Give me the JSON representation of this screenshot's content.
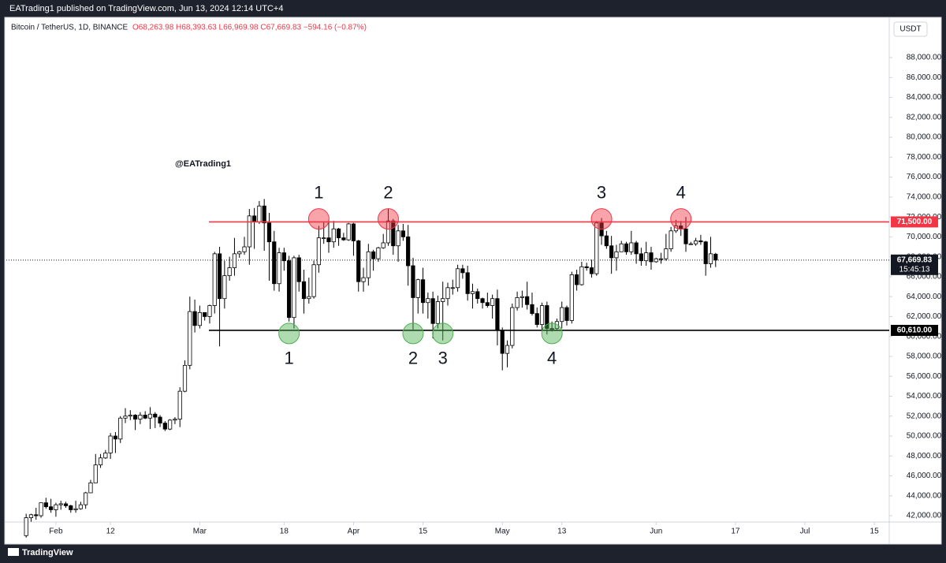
{
  "header": {
    "published": "EATrading1 published on TradingView.com, Jun 13, 2024 12:14 UTC+4",
    "symbol": "Bitcoin / TetherUS, 1D, BINANCE",
    "ohlc": "O68,263.98 H68,393.63 L66,969.98 C67,669.83 −594.16 (−0.87%)",
    "currency": "USDT"
  },
  "footer": {
    "brand": "TradingView"
  },
  "chart_data": {
    "type": "candlestick",
    "watermark": "@EATrading1",
    "x": [
      "2024-01-26",
      "2024-01-27",
      "2024-01-28",
      "2024-01-29",
      "2024-01-30",
      "2024-01-31",
      "2024-02-01",
      "2024-02-02",
      "2024-02-03",
      "2024-02-04",
      "2024-02-05",
      "2024-02-06",
      "2024-02-07",
      "2024-02-08",
      "2024-02-09",
      "2024-02-10",
      "2024-02-11",
      "2024-02-12",
      "2024-02-13",
      "2024-02-14",
      "2024-02-15",
      "2024-02-16",
      "2024-02-17",
      "2024-02-18",
      "2024-02-19",
      "2024-02-20",
      "2024-02-21",
      "2024-02-22",
      "2024-02-23",
      "2024-02-24",
      "2024-02-25",
      "2024-02-26",
      "2024-02-27",
      "2024-02-28",
      "2024-02-29",
      "2024-03-01",
      "2024-03-02",
      "2024-03-03",
      "2024-03-04",
      "2024-03-05",
      "2024-03-06",
      "2024-03-07",
      "2024-03-08",
      "2024-03-09",
      "2024-03-10",
      "2024-03-11",
      "2024-03-12",
      "2024-03-13",
      "2024-03-14",
      "2024-03-15",
      "2024-03-16",
      "2024-03-17",
      "2024-03-18",
      "2024-03-19",
      "2024-03-20",
      "2024-03-21",
      "2024-03-22",
      "2024-03-23",
      "2024-03-24",
      "2024-03-25",
      "2024-03-26",
      "2024-03-27",
      "2024-03-28",
      "2024-03-29",
      "2024-03-30",
      "2024-03-31",
      "2024-04-01",
      "2024-04-02",
      "2024-04-03",
      "2024-04-04",
      "2024-04-05",
      "2024-04-06",
      "2024-04-07",
      "2024-04-08",
      "2024-04-09",
      "2024-04-10",
      "2024-04-11",
      "2024-04-12",
      "2024-04-13",
      "2024-04-14",
      "2024-04-15",
      "2024-04-16",
      "2024-04-17",
      "2024-04-18",
      "2024-04-19",
      "2024-04-20",
      "2024-04-21",
      "2024-04-22",
      "2024-04-23",
      "2024-04-24",
      "2024-04-25",
      "2024-04-26",
      "2024-04-27",
      "2024-04-28",
      "2024-04-29",
      "2024-04-30",
      "2024-05-01",
      "2024-05-02",
      "2024-05-03",
      "2024-05-04",
      "2024-05-05",
      "2024-05-06",
      "2024-05-07",
      "2024-05-08",
      "2024-05-09",
      "2024-05-10",
      "2024-05-11",
      "2024-05-12",
      "2024-05-13",
      "2024-05-14",
      "2024-05-15",
      "2024-05-16",
      "2024-05-17",
      "2024-05-18",
      "2024-05-19",
      "2024-05-20",
      "2024-05-21",
      "2024-05-22",
      "2024-05-23",
      "2024-05-24",
      "2024-05-25",
      "2024-05-26",
      "2024-05-27",
      "2024-05-28",
      "2024-05-29",
      "2024-05-30",
      "2024-05-31",
      "2024-06-01",
      "2024-06-02",
      "2024-06-03",
      "2024-06-04",
      "2024-06-05",
      "2024-06-06",
      "2024-06-07",
      "2024-06-08",
      "2024-06-09",
      "2024-06-10",
      "2024-06-11",
      "2024-06-12",
      "2024-06-13"
    ],
    "open": [
      40000,
      41800,
      42100,
      42000,
      43300,
      42900,
      42600,
      43100,
      43200,
      43000,
      42600,
      42700,
      43100,
      44300,
      45300,
      47100,
      47800,
      48300,
      50000,
      49700,
      51800,
      52000,
      52100,
      51700,
      52100,
      51800,
      52200,
      51900,
      51300,
      50700,
      51600,
      51700,
      54500,
      57100,
      62500,
      61100,
      62400,
      62000,
      63100,
      68300,
      63800,
      66100,
      66900,
      68300,
      68500,
      69000,
      72100,
      71500,
      73100,
      71400,
      69500,
      65300,
      68400,
      67600,
      61900,
      67900,
      65500,
      63800,
      64000,
      67200,
      69900,
      69900,
      69500,
      70800,
      69900,
      69700,
      71300,
      69600,
      65500,
      65900,
      68500,
      67800,
      68900,
      69400,
      71600,
      69100,
      70600,
      70000,
      67100,
      63900,
      65700,
      63400,
      63800,
      61300,
      63500,
      63800,
      64900,
      64900,
      66800,
      66400,
      64300,
      64500,
      63800,
      63400,
      63100,
      63800,
      60600,
      58300,
      59100,
      62900,
      63900,
      64000,
      63200,
      62300,
      61200,
      63100,
      60800,
      60800,
      61500,
      62900,
      61600,
      66200,
      65200,
      67000,
      66900,
      66300,
      71400,
      70100,
      69100,
      67900,
      68500,
      69300,
      68500,
      69400,
      68300,
      67600,
      68400,
      67500,
      67800,
      67800,
      68800,
      70600,
      71100,
      70800,
      69300,
      69300,
      69600,
      69500,
      67300,
      68263.98
    ],
    "high": [
      42200,
      42200,
      42800,
      43300,
      43800,
      43700,
      43300,
      43500,
      43400,
      43100,
      43500,
      43400,
      44400,
      45600,
      48200,
      48200,
      48600,
      50300,
      50400,
      52000,
      52800,
      52600,
      52200,
      52400,
      52500,
      52900,
      52400,
      52100,
      51500,
      51700,
      51900,
      54900,
      57600,
      64000,
      63700,
      63100,
      62400,
      63200,
      68500,
      69000,
      67600,
      68000,
      69900,
      68600,
      70000,
      72800,
      72900,
      73600,
      73800,
      72400,
      70600,
      68900,
      68900,
      68100,
      68100,
      68200,
      66700,
      65900,
      67600,
      71100,
      71500,
      71700,
      71600,
      70900,
      70400,
      71400,
      71400,
      69700,
      66900,
      69300,
      68700,
      69000,
      70300,
      72800,
      71800,
      71200,
      71300,
      71200,
      67900,
      65800,
      66900,
      64400,
      64500,
      64100,
      65500,
      65400,
      65700,
      67200,
      67200,
      67100,
      65300,
      64800,
      63900,
      64400,
      64200,
      64700,
      60900,
      59600,
      63300,
      64500,
      64600,
      65500,
      64400,
      62900,
      63400,
      63500,
      61500,
      61800,
      63500,
      63100,
      66500,
      66700,
      67500,
      67400,
      67700,
      71600,
      71900,
      70600,
      70100,
      69200,
      69600,
      69500,
      70600,
      69600,
      68900,
      69500,
      69000,
      67900,
      68400,
      70300,
      71000,
      71700,
      71600,
      72000,
      69500,
      69900,
      70200,
      69600,
      70000,
      68393.63
    ],
    "low": [
      39800,
      41400,
      41600,
      41800,
      42700,
      42300,
      41900,
      42600,
      42800,
      42300,
      42300,
      42600,
      42700,
      44300,
      45300,
      46800,
      47700,
      47700,
      48300,
      49300,
      51300,
      51600,
      50600,
      51200,
      51700,
      50700,
      50800,
      50900,
      50500,
      50600,
      51200,
      50900,
      54400,
      56700,
      60400,
      60800,
      61600,
      61300,
      62300,
      59000,
      62800,
      65600,
      66100,
      67900,
      68200,
      67200,
      68800,
      71300,
      68600,
      65600,
      64600,
      64500,
      66600,
      61500,
      60800,
      64500,
      62300,
      63300,
      63800,
      66400,
      69300,
      68400,
      68900,
      69100,
      69600,
      69600,
      68100,
      64500,
      64500,
      65100,
      66600,
      67500,
      68800,
      69100,
      68200,
      67500,
      69600,
      65100,
      60700,
      62300,
      62300,
      61800,
      59800,
      60800,
      59600,
      63100,
      64200,
      64500,
      65800,
      63600,
      62800,
      63300,
      62800,
      62900,
      61800,
      59100,
      56600,
      56900,
      58800,
      62600,
      62900,
      62700,
      62100,
      60900,
      60600,
      60200,
      60500,
      60600,
      60800,
      61100,
      61300,
      64600,
      65100,
      66600,
      65900,
      66100,
      69200,
      68800,
      66300,
      66600,
      68500,
      68200,
      68200,
      67300,
      67100,
      67100,
      66700,
      67400,
      67300,
      67600,
      68500,
      70400,
      70100,
      68500,
      69200,
      69100,
      69200,
      66100,
      66900,
      66969.98
    ],
    "close": [
      41800,
      42100,
      42000,
      43300,
      42900,
      42600,
      43100,
      43200,
      43000,
      42600,
      42700,
      43100,
      44300,
      45300,
      47100,
      47800,
      48300,
      50000,
      49700,
      51800,
      52000,
      52100,
      51700,
      52100,
      51800,
      52200,
      51900,
      51300,
      50700,
      51600,
      51700,
      54500,
      57100,
      62500,
      61100,
      62400,
      62000,
      63100,
      68300,
      63800,
      66100,
      66900,
      68300,
      68500,
      69000,
      72100,
      71500,
      73100,
      71400,
      69500,
      65300,
      68400,
      67600,
      61900,
      67900,
      65500,
      63800,
      64000,
      67200,
      69900,
      69900,
      69500,
      70800,
      69900,
      69700,
      71300,
      69600,
      65500,
      65900,
      68500,
      67800,
      68900,
      69400,
      71600,
      69100,
      70600,
      70000,
      67100,
      63900,
      65700,
      63400,
      63800,
      61300,
      63500,
      63800,
      64900,
      64900,
      66800,
      66400,
      64300,
      64500,
      63800,
      63400,
      63100,
      63800,
      60600,
      58300,
      59100,
      62900,
      63900,
      64000,
      63200,
      62300,
      61200,
      63100,
      60800,
      60800,
      61500,
      62900,
      61600,
      66200,
      65200,
      67000,
      66900,
      66300,
      71400,
      70100,
      69100,
      67900,
      68500,
      69300,
      68500,
      69400,
      68300,
      67600,
      68400,
      67500,
      67800,
      67800,
      68800,
      70600,
      71100,
      70800,
      69300,
      69300,
      69600,
      69500,
      67300,
      68300,
      67669.83
    ],
    "up_color": "#ffffff",
    "down_color": "#000000",
    "xlim": [
      "2024-01-22",
      "2024-07-18"
    ],
    "xticks": [
      {
        "value": "2024-02-01",
        "label": "Feb"
      },
      {
        "value": "2024-02-12",
        "label": "12"
      },
      {
        "value": "2024-03-01",
        "label": "Mar"
      },
      {
        "value": "2024-03-18",
        "label": "18"
      },
      {
        "value": "2024-04-01",
        "label": "Apr"
      },
      {
        "value": "2024-04-15",
        "label": "15"
      },
      {
        "value": "2024-05-01",
        "label": "May"
      },
      {
        "value": "2024-05-13",
        "label": "13"
      },
      {
        "value": "2024-06-01",
        "label": "Jun"
      },
      {
        "value": "2024-06-17",
        "label": "17"
      },
      {
        "value": "2024-07-01",
        "label": "Jul"
      },
      {
        "value": "2024-07-15",
        "label": "15"
      }
    ],
    "ylim": [
      41370,
      92040
    ],
    "yticks": [
      {
        "value": 42000,
        "label": "42,000.00"
      },
      {
        "value": 44000,
        "label": "44,000.00"
      },
      {
        "value": 46000,
        "label": "46,000.00"
      },
      {
        "value": 48000,
        "label": "48,000.00"
      },
      {
        "value": 50000,
        "label": "50,000.00"
      },
      {
        "value": 52000,
        "label": "52,000.00"
      },
      {
        "value": 54000,
        "label": "54,000.00"
      },
      {
        "value": 56000,
        "label": "56,000.00"
      },
      {
        "value": 58000,
        "label": "58,000.00"
      },
      {
        "value": 60000,
        "label": "60,000.00"
      },
      {
        "value": 62000,
        "label": "62,000.00"
      },
      {
        "value": 64000,
        "label": "64,000.00"
      },
      {
        "value": 66000,
        "label": "66,000.00"
      },
      {
        "value": 68000,
        "label": "68,000.00"
      },
      {
        "value": 70000,
        "label": "70,000.00"
      },
      {
        "value": 72000,
        "label": "72,000.00"
      },
      {
        "value": 74000,
        "label": "74,000.00"
      },
      {
        "value": 76000,
        "label": "76,000.00"
      },
      {
        "value": 78000,
        "label": "78,000.00"
      },
      {
        "value": 80000,
        "label": "80,000.00"
      },
      {
        "value": 82000,
        "label": "82,000.00"
      },
      {
        "value": 84000,
        "label": "84,000.00"
      },
      {
        "value": 86000,
        "label": "86,000.00"
      },
      {
        "value": 88000,
        "label": "88,000.00"
      }
    ],
    "levels": [
      {
        "value": 71500,
        "label": "71,500.00",
        "color": "#f23645"
      },
      {
        "value": 60610,
        "label": "60,610.00",
        "color": "#000000"
      }
    ],
    "last": {
      "value": 67669.83,
      "label": "67,669.83",
      "countdown": "15:45:13"
    },
    "annotations": [
      {
        "label": "1",
        "x": "2024-03-25",
        "y": 71800,
        "color": "#f23645",
        "side": "above"
      },
      {
        "label": "2",
        "x": "2024-04-08",
        "y": 71800,
        "color": "#f23645",
        "side": "above"
      },
      {
        "label": "3",
        "x": "2024-05-21",
        "y": 71800,
        "color": "#f23645",
        "side": "above"
      },
      {
        "label": "4",
        "x": "2024-06-06",
        "y": 71800,
        "color": "#f23645",
        "side": "above"
      },
      {
        "label": "1",
        "x": "2024-03-19",
        "y": 60300,
        "color": "#4caf50",
        "side": "below"
      },
      {
        "label": "2",
        "x": "2024-04-13",
        "y": 60300,
        "color": "#4caf50",
        "side": "below"
      },
      {
        "label": "3",
        "x": "2024-04-19",
        "y": 60300,
        "color": "#4caf50",
        "side": "below"
      },
      {
        "label": "4",
        "x": "2024-05-11",
        "y": 60300,
        "color": "#4caf50",
        "side": "below"
      }
    ]
  }
}
